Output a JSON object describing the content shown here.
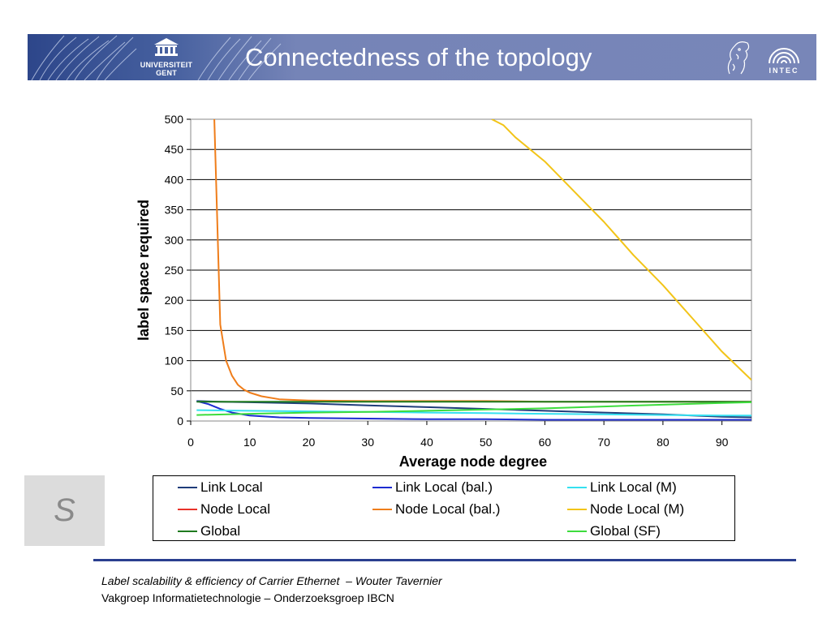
{
  "header": {
    "title": "Connectedness of the topology",
    "university_logo_line1": "UNIVERSITEIT",
    "university_logo_line2": "GENT",
    "intec_logo": "INTEC"
  },
  "side_box": {
    "label": "S"
  },
  "footer": {
    "line1": "Label scalability & efficiency of Carrier Ethernet  – Wouter Tavernier",
    "line2": "Vakgroep Informatietechnologie – Onderzoeksgroep IBCN"
  },
  "chart_data": {
    "type": "line",
    "xlabel": "Average node degree",
    "ylabel": "label space required",
    "xlim": [
      0,
      95
    ],
    "ylim": [
      0,
      500
    ],
    "xticks": [
      0,
      10,
      20,
      30,
      40,
      50,
      60,
      70,
      80,
      90
    ],
    "yticks": [
      0,
      50,
      100,
      150,
      200,
      250,
      300,
      350,
      400,
      450,
      500
    ],
    "grid": "horizontal",
    "legend_position": "bottom",
    "series": [
      {
        "name": "Link Local",
        "color": "#1f3d7a",
        "x": [
          1,
          5,
          10,
          20,
          30,
          40,
          50,
          60,
          70,
          80,
          90,
          95
        ],
        "y": [
          33,
          32,
          31,
          29,
          26,
          23,
          20,
          17,
          14,
          11,
          7,
          6
        ]
      },
      {
        "name": "Link Local (bal.)",
        "color": "#1c2bd1",
        "x": [
          1,
          3,
          5,
          7,
          10,
          15,
          20,
          30,
          40,
          50,
          60,
          70,
          80,
          90,
          95
        ],
        "y": [
          33,
          28,
          20,
          14,
          9,
          6,
          5,
          4,
          3,
          3,
          2,
          2,
          2,
          2,
          2
        ]
      },
      {
        "name": "Link Local (M)",
        "color": "#35e0f0",
        "x": [
          1,
          10,
          20,
          30,
          40,
          50,
          60,
          70,
          80,
          90,
          95
        ],
        "y": [
          18,
          17,
          16,
          15,
          14,
          13,
          12,
          11,
          10,
          9,
          9
        ]
      },
      {
        "name": "Node Local",
        "color": "#e8322a",
        "x": [],
        "y": []
      },
      {
        "name": "Node Local (bal.)",
        "color": "#ef7d1a",
        "x": [
          4,
          5,
          6,
          7,
          8,
          9,
          10,
          12,
          15,
          20,
          30,
          40,
          50,
          60,
          70,
          80,
          90,
          95
        ],
        "y": [
          500,
          160,
          100,
          75,
          60,
          52,
          47,
          41,
          36,
          34,
          33,
          33,
          33,
          32,
          32,
          32,
          32,
          32
        ]
      },
      {
        "name": "Node Local (M)",
        "color": "#f2c418",
        "x": [
          51,
          53,
          55,
          60,
          65,
          70,
          75,
          80,
          85,
          90,
          95
        ],
        "y": [
          500,
          490,
          470,
          430,
          380,
          330,
          275,
          225,
          170,
          115,
          68
        ]
      },
      {
        "name": "Global",
        "color": "#1f7a1f",
        "x": [
          1,
          10,
          20,
          30,
          40,
          50,
          60,
          70,
          80,
          90,
          95
        ],
        "y": [
          32,
          32,
          32,
          32,
          32,
          32,
          32,
          32,
          32,
          32,
          32
        ]
      },
      {
        "name": "Global (SF)",
        "color": "#3ddc3d",
        "x": [
          1,
          10,
          20,
          30,
          40,
          50,
          60,
          70,
          80,
          90,
          95
        ],
        "y": [
          10,
          12,
          14,
          15,
          17,
          19,
          21,
          24,
          27,
          30,
          31
        ]
      }
    ]
  }
}
